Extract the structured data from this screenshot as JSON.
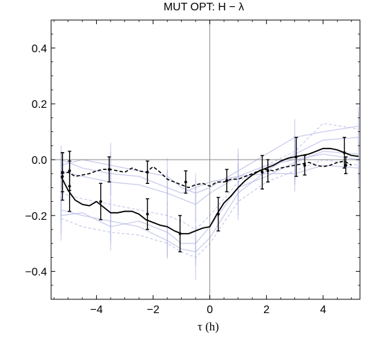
{
  "chart_data": {
    "type": "line",
    "title": "MUT OPT: H − λ",
    "xlabel": "τ (h)",
    "ylabel": "",
    "xlim": [
      -5.6,
      5.3
    ],
    "ylim": [
      -0.5,
      0.5
    ],
    "x_ticks": [
      -4,
      -2,
      0,
      2,
      4
    ],
    "x_tick_labels": [
      "−4",
      "−2",
      "0",
      "2",
      "4"
    ],
    "y_ticks": [
      -0.4,
      -0.2,
      0.0,
      0.2,
      0.4
    ],
    "y_tick_labels": [
      "−0.4",
      "−0.2",
      "0.0",
      "0.2",
      "0.4"
    ],
    "grid": false,
    "reference_lines": {
      "x": 0,
      "y": 0
    },
    "colors": {
      "solid_series": "#000000",
      "dashed_series": "#000000",
      "background_series": "#b7bbe6",
      "errorbar_bg": "#a7ace3"
    },
    "series": [
      {
        "style": "solid",
        "x": [
          -5.25,
          -5.0,
          -4.75,
          -4.5,
          -4.25,
          -4.0,
          -3.75,
          -3.5,
          -3.25,
          -3.0,
          -2.75,
          -2.5,
          -2.25,
          -2.0,
          -1.75,
          -1.5,
          -1.25,
          -1.0,
          -0.75,
          -0.5,
          -0.25,
          0.0,
          0.25,
          0.5,
          0.75,
          1.0,
          1.25,
          1.5,
          1.75,
          2.0,
          2.25,
          2.5,
          2.75,
          3.0,
          3.25,
          3.5,
          3.75,
          4.0,
          4.25,
          4.5,
          4.75,
          5.0,
          5.25
        ],
        "values": [
          -0.06,
          -0.11,
          -0.145,
          -0.16,
          -0.165,
          -0.15,
          -0.17,
          -0.19,
          -0.19,
          -0.185,
          -0.185,
          -0.195,
          -0.215,
          -0.225,
          -0.235,
          -0.24,
          -0.255,
          -0.265,
          -0.265,
          -0.255,
          -0.245,
          -0.24,
          -0.195,
          -0.155,
          -0.13,
          -0.1,
          -0.075,
          -0.055,
          -0.04,
          -0.03,
          -0.02,
          -0.005,
          0.005,
          0.01,
          0.015,
          0.02,
          0.03,
          0.04,
          0.04,
          0.035,
          0.025,
          0.015,
          0.012
        ],
        "errorbar_x": [
          -5.2,
          -4.95,
          -3.85,
          -2.2,
          -1.05,
          0.3,
          1.85,
          3.05,
          4.75
        ],
        "errorbar_y": [
          -0.06,
          -0.095,
          -0.15,
          -0.195,
          -0.265,
          -0.195,
          -0.045,
          0.01,
          0.025
        ],
        "errorbar_err": [
          0.085,
          0.09,
          0.065,
          0.055,
          0.065,
          0.06,
          0.06,
          0.07,
          0.055
        ]
      },
      {
        "style": "dashed",
        "x": [
          -5.25,
          -5.0,
          -4.75,
          -4.5,
          -4.25,
          -4.0,
          -3.75,
          -3.5,
          -3.25,
          -3.0,
          -2.75,
          -2.5,
          -2.25,
          -2.0,
          -1.75,
          -1.5,
          -1.25,
          -1.0,
          -0.75,
          -0.5,
          -0.25,
          0.0,
          0.25,
          0.5,
          0.75,
          1.0,
          1.25,
          1.5,
          1.75,
          2.0,
          2.25,
          2.5,
          2.75,
          3.0,
          3.25,
          3.5,
          3.75,
          4.0,
          4.25,
          4.5,
          4.75,
          5.0
        ],
        "values": [
          -0.05,
          -0.045,
          -0.06,
          -0.055,
          -0.05,
          -0.04,
          -0.035,
          -0.035,
          -0.04,
          -0.045,
          -0.03,
          -0.04,
          -0.045,
          -0.025,
          -0.045,
          -0.07,
          -0.08,
          -0.09,
          -0.1,
          -0.09,
          -0.085,
          -0.095,
          -0.08,
          -0.08,
          -0.07,
          -0.07,
          -0.06,
          -0.05,
          -0.04,
          -0.035,
          -0.04,
          -0.03,
          -0.025,
          -0.02,
          -0.015,
          -0.01,
          -0.02,
          -0.025,
          -0.02,
          -0.01,
          -0.005,
          -0.02
        ],
        "errorbar_x": [
          -5.2,
          -4.95,
          -3.55,
          -2.2,
          -0.85,
          0.6,
          2.05,
          3.35,
          4.8
        ],
        "errorbar_y": [
          -0.045,
          -0.04,
          -0.035,
          -0.045,
          -0.08,
          -0.075,
          -0.04,
          -0.02,
          -0.02
        ],
        "errorbar_err": [
          0.07,
          0.07,
          0.045,
          0.04,
          0.04,
          0.04,
          0.04,
          0.035,
          0.03
        ]
      }
    ],
    "background_series": [
      {
        "x": [
          -5.25,
          -4.5,
          -3.5,
          -2.5,
          -1.5,
          -1.0,
          -0.5,
          0.0,
          1.0,
          2.0,
          3.0,
          4.0,
          5.25
        ],
        "values": [
          -0.18,
          -0.2,
          -0.22,
          -0.24,
          -0.29,
          -0.32,
          -0.33,
          -0.28,
          -0.12,
          -0.04,
          0.02,
          0.07,
          0.08
        ]
      },
      {
        "x": [
          -5.25,
          -4.5,
          -3.5,
          -2.5,
          -1.5,
          -1.0,
          -0.5,
          0.0,
          1.0,
          2.0,
          3.0,
          4.0,
          5.25
        ],
        "values": [
          -0.2,
          -0.19,
          -0.24,
          -0.22,
          -0.26,
          -0.3,
          -0.3,
          -0.24,
          -0.1,
          -0.06,
          -0.01,
          0.03,
          0.02
        ]
      },
      {
        "x": [
          -5.25,
          -4.5,
          -3.5,
          -2.5,
          -1.5,
          -1.0,
          -0.5,
          0.0,
          1.0,
          2.0,
          3.0,
          4.0,
          5.25
        ],
        "values": [
          -0.12,
          -0.14,
          -0.16,
          -0.18,
          -0.2,
          -0.22,
          -0.25,
          -0.2,
          -0.08,
          -0.02,
          0.03,
          0.13,
          0.11
        ]
      },
      {
        "x": [
          -5.25,
          -4.5,
          -3.5,
          -2.5,
          -1.5,
          -1.0,
          -0.5,
          0.0,
          1.0,
          2.0,
          3.0,
          4.0,
          5.25
        ],
        "values": [
          0.0,
          -0.03,
          -0.05,
          -0.06,
          -0.1,
          -0.12,
          -0.1,
          -0.08,
          -0.06,
          -0.05,
          -0.05,
          -0.02,
          -0.03
        ]
      },
      {
        "x": [
          -5.25,
          -4.5,
          -3.5,
          -2.5,
          -1.5,
          -1.0,
          -0.5,
          0.0,
          1.0,
          2.0,
          3.0,
          4.0,
          5.25
        ],
        "values": [
          -0.04,
          -0.06,
          -0.08,
          -0.09,
          -0.12,
          -0.14,
          -0.16,
          -0.12,
          -0.06,
          -0.02,
          0.0,
          0.02,
          0.0
        ]
      },
      {
        "x": [
          -5.25,
          -4.5,
          -3.5,
          -2.5,
          -1.5,
          -1.0,
          -0.5,
          0.0,
          1.0,
          2.0,
          3.0,
          4.0,
          5.25
        ],
        "values": [
          -0.21,
          -0.24,
          -0.26,
          -0.27,
          -0.3,
          -0.33,
          -0.35,
          -0.3,
          -0.15,
          -0.08,
          -0.04,
          0.0,
          -0.02
        ]
      },
      {
        "x": [
          -5.25,
          -4.5,
          -3.5,
          -2.5,
          -1.5,
          -1.0,
          -0.5,
          0.0,
          1.0,
          2.0,
          3.0,
          4.0,
          5.25
        ],
        "values": [
          -0.02,
          0.0,
          -0.02,
          -0.04,
          -0.06,
          -0.1,
          -0.12,
          -0.1,
          -0.04,
          0.02,
          0.08,
          0.1,
          0.12
        ]
      }
    ]
  }
}
